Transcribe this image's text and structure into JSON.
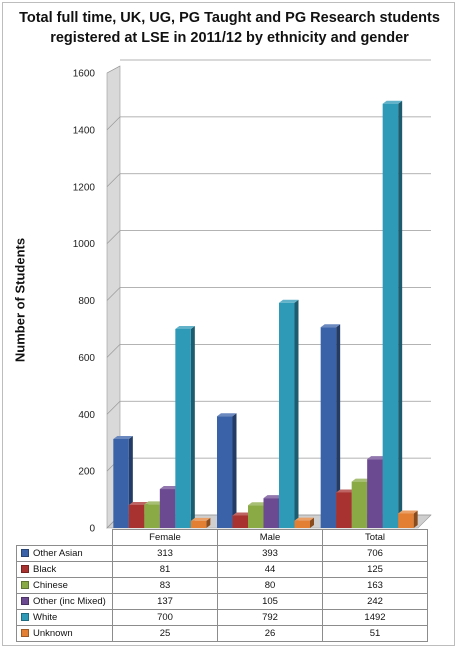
{
  "chart_data": {
    "type": "bar",
    "title_line1": "Total full time, UK, UG, PG Taught and PG Research students",
    "title_line2": "registered at LSE in 2011/12 by ethnicity and gender",
    "ylabel": "Number of Students",
    "xlabel": "",
    "categories": [
      "Female",
      "Male",
      "Total"
    ],
    "ylim": [
      0,
      1600
    ],
    "yticks": [
      "0",
      "200",
      "400",
      "600",
      "800",
      "1000",
      "1200",
      "1400",
      "1600"
    ],
    "grid": true,
    "legend": "table-below",
    "series": [
      {
        "name": "Other Asian",
        "color": "#3a62a8",
        "values": [
          313,
          393,
          706
        ],
        "labels": [
          "313",
          "393",
          "706"
        ]
      },
      {
        "name": "Black",
        "color": "#a8322f",
        "values": [
          81,
          44,
          125
        ],
        "labels": [
          "81",
          "44",
          "125"
        ]
      },
      {
        "name": "Chinese",
        "color": "#8aaa46",
        "values": [
          83,
          80,
          163
        ],
        "labels": [
          "83",
          "80",
          "163"
        ]
      },
      {
        "name": "Other (inc Mixed)",
        "color": "#6c4a92",
        "values": [
          137,
          105,
          242
        ],
        "labels": [
          "137",
          "105",
          "242"
        ]
      },
      {
        "name": "White",
        "color": "#2e9ab8",
        "values": [
          700,
          792,
          1492
        ],
        "labels": [
          "700",
          "792",
          "1492"
        ]
      },
      {
        "name": "Unknown",
        "color": "#e27f33",
        "values": [
          25,
          26,
          51
        ],
        "labels": [
          "25",
          "26",
          "51"
        ]
      }
    ]
  }
}
